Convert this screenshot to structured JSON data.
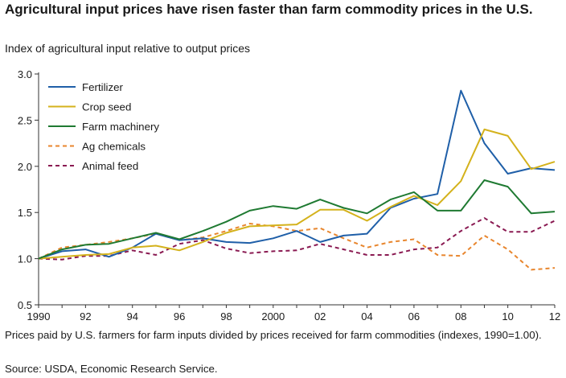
{
  "chart_data": {
    "type": "line",
    "title": "Agricultural input prices have risen faster than farm commodity prices in the U.S.",
    "ylabel": "Index of agricultural input relative to output prices",
    "ylim": [
      0.5,
      3.0
    ],
    "yticks": [
      "0.5",
      "1.0",
      "1.5",
      "2.0",
      "2.5",
      "3.0"
    ],
    "ytick_values": [
      0.5,
      1.0,
      1.5,
      2.0,
      2.5,
      3.0
    ],
    "x": [
      1990,
      1991,
      1992,
      1993,
      1994,
      1995,
      1996,
      1997,
      1998,
      1999,
      2000,
      2001,
      2002,
      2003,
      2004,
      2005,
      2006,
      2007,
      2008,
      2009,
      2010,
      2011,
      2012
    ],
    "xtick_labels": [
      "1990",
      "92",
      "94",
      "96",
      "98",
      "2000",
      "02",
      "04",
      "06",
      "08",
      "10",
      "12"
    ],
    "xtick_values": [
      1990,
      1992,
      1994,
      1996,
      1998,
      2000,
      2002,
      2004,
      2006,
      2008,
      2010,
      2012
    ],
    "legend": "top-left",
    "series": [
      {
        "name": "Fertilizer",
        "color": "#1f5fa8",
        "dash": false,
        "values": [
          1.0,
          1.08,
          1.1,
          1.02,
          1.12,
          1.27,
          1.2,
          1.22,
          1.18,
          1.17,
          1.22,
          1.3,
          1.18,
          1.25,
          1.27,
          1.55,
          1.65,
          1.7,
          2.82,
          2.25,
          1.92,
          1.98,
          1.96
        ]
      },
      {
        "name": "Crop seed",
        "color": "#d4b21c",
        "dash": false,
        "values": [
          1.0,
          1.02,
          1.04,
          1.05,
          1.12,
          1.14,
          1.09,
          1.18,
          1.28,
          1.35,
          1.36,
          1.37,
          1.53,
          1.53,
          1.41,
          1.56,
          1.68,
          1.58,
          1.84,
          2.4,
          2.33,
          1.97,
          2.05
        ]
      },
      {
        "name": "Farm machinery",
        "color": "#1f7a32",
        "dash": false,
        "values": [
          1.0,
          1.1,
          1.15,
          1.16,
          1.22,
          1.28,
          1.21,
          1.3,
          1.4,
          1.52,
          1.57,
          1.54,
          1.64,
          1.55,
          1.49,
          1.64,
          1.72,
          1.52,
          1.52,
          1.85,
          1.78,
          1.49,
          1.51
        ]
      },
      {
        "name": "Ag chemicals",
        "color": "#e8862e",
        "dash": true,
        "values": [
          1.0,
          1.12,
          1.15,
          1.18,
          1.22,
          1.27,
          1.2,
          1.23,
          1.3,
          1.38,
          1.35,
          1.3,
          1.33,
          1.22,
          1.12,
          1.18,
          1.21,
          1.04,
          1.03,
          1.25,
          1.1,
          0.88,
          0.9
        ]
      },
      {
        "name": "Animal feed",
        "color": "#8a1a52",
        "dash": true,
        "values": [
          1.0,
          0.99,
          1.03,
          1.03,
          1.09,
          1.04,
          1.16,
          1.2,
          1.11,
          1.06,
          1.08,
          1.09,
          1.16,
          1.1,
          1.04,
          1.04,
          1.1,
          1.12,
          1.3,
          1.44,
          1.29,
          1.29,
          1.41
        ]
      }
    ]
  },
  "subtitle": "Index of agricultural input relative to output prices",
  "footnote": "Prices paid by U.S. farmers for farm inputs divided by prices received for farm commodities (indexes, 1990=1.00).",
  "source": "Source: USDA, Economic Research Service."
}
